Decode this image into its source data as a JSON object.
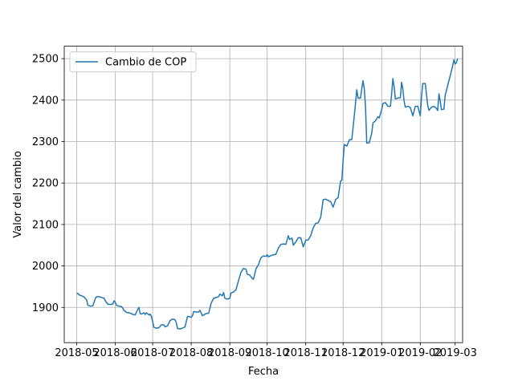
{
  "chart_data": {
    "type": "line",
    "title": "",
    "xlabel": "Fecha",
    "ylabel": "Valor del cambio",
    "grid": true,
    "legend_position": "top-left",
    "xlim": [
      "2018-04-21",
      "2019-03-07"
    ],
    "ylim": [
      1815,
      2530
    ],
    "x_ticks": [
      "2018-05-01",
      "2018-06-01",
      "2018-07-01",
      "2018-08-01",
      "2018-09-01",
      "2018-10-01",
      "2018-11-01",
      "2018-12-01",
      "2019-01-01",
      "2019-02-01",
      "2019-03-01"
    ],
    "x_tick_labels": [
      "2018-05",
      "2018-06",
      "2018-07",
      "2018-08",
      "2018-09",
      "2018-10",
      "2018-11",
      "2018-12",
      "2019-01",
      "2019-02",
      "2019-03"
    ],
    "y_ticks": [
      1900,
      2000,
      2100,
      2200,
      2300,
      2400,
      2500
    ],
    "y_tick_labels": [
      "1900",
      "2000",
      "2100",
      "2200",
      "2300",
      "2400",
      "2500"
    ],
    "series": [
      {
        "name": "Cambio de COP",
        "color": "#1f77b4",
        "points": [
          [
            "2018-05-01",
            1933
          ],
          [
            "2018-05-02",
            1934
          ],
          [
            "2018-05-03",
            1930
          ],
          [
            "2018-05-05",
            1928
          ],
          [
            "2018-05-07",
            1925
          ],
          [
            "2018-05-09",
            1918
          ],
          [
            "2018-05-10",
            1905
          ],
          [
            "2018-05-12",
            1903
          ],
          [
            "2018-05-14",
            1904
          ],
          [
            "2018-05-16",
            1922
          ],
          [
            "2018-05-17",
            1926
          ],
          [
            "2018-05-19",
            1926
          ],
          [
            "2018-05-21",
            1924
          ],
          [
            "2018-05-23",
            1922
          ],
          [
            "2018-05-24",
            1916
          ],
          [
            "2018-05-26",
            1908
          ],
          [
            "2018-05-28",
            1907
          ],
          [
            "2018-05-30",
            1908
          ],
          [
            "2018-05-31",
            1916
          ],
          [
            "2018-06-01",
            1912
          ],
          [
            "2018-06-02",
            1905
          ],
          [
            "2018-06-04",
            1903
          ],
          [
            "2018-06-06",
            1902
          ],
          [
            "2018-06-07",
            1898
          ],
          [
            "2018-06-08",
            1893
          ],
          [
            "2018-06-10",
            1888
          ],
          [
            "2018-06-12",
            1887
          ],
          [
            "2018-06-14",
            1885
          ],
          [
            "2018-06-15",
            1883
          ],
          [
            "2018-06-17",
            1882
          ],
          [
            "2018-06-19",
            1895
          ],
          [
            "2018-06-20",
            1900
          ],
          [
            "2018-06-21",
            1885
          ],
          [
            "2018-06-22",
            1884
          ],
          [
            "2018-06-24",
            1887
          ],
          [
            "2018-06-25",
            1883
          ],
          [
            "2018-06-26",
            1887
          ],
          [
            "2018-06-28",
            1882
          ],
          [
            "2018-06-29",
            1884
          ],
          [
            "2018-06-30",
            1878
          ],
          [
            "2018-07-01",
            1866
          ],
          [
            "2018-07-02",
            1852
          ],
          [
            "2018-07-04",
            1850
          ],
          [
            "2018-07-06",
            1851
          ],
          [
            "2018-07-08",
            1858
          ],
          [
            "2018-07-10",
            1858
          ],
          [
            "2018-07-11",
            1853
          ],
          [
            "2018-07-13",
            1856
          ],
          [
            "2018-07-15",
            1868
          ],
          [
            "2018-07-17",
            1872
          ],
          [
            "2018-07-19",
            1870
          ],
          [
            "2018-07-20",
            1863
          ],
          [
            "2018-07-21",
            1849
          ],
          [
            "2018-07-23",
            1848
          ],
          [
            "2018-07-25",
            1850
          ],
          [
            "2018-07-27",
            1853
          ],
          [
            "2018-07-29",
            1878
          ],
          [
            "2018-07-30",
            1878
          ],
          [
            "2018-08-01",
            1876
          ],
          [
            "2018-08-02",
            1880
          ],
          [
            "2018-08-03",
            1890
          ],
          [
            "2018-08-05",
            1889
          ],
          [
            "2018-08-07",
            1889
          ],
          [
            "2018-08-08",
            1893
          ],
          [
            "2018-08-10",
            1880
          ],
          [
            "2018-08-11",
            1882
          ],
          [
            "2018-08-13",
            1885
          ],
          [
            "2018-08-15",
            1886
          ],
          [
            "2018-08-17",
            1910
          ],
          [
            "2018-08-19",
            1922
          ],
          [
            "2018-08-21",
            1924
          ],
          [
            "2018-08-23",
            1926
          ],
          [
            "2018-08-24",
            1932
          ],
          [
            "2018-08-26",
            1928
          ],
          [
            "2018-08-27",
            1936
          ],
          [
            "2018-08-28",
            1922
          ],
          [
            "2018-08-30",
            1920
          ],
          [
            "2018-09-01",
            1922
          ],
          [
            "2018-09-02",
            1935
          ],
          [
            "2018-09-04",
            1937
          ],
          [
            "2018-09-06",
            1943
          ],
          [
            "2018-09-08",
            1965
          ],
          [
            "2018-09-10",
            1985
          ],
          [
            "2018-09-12",
            1994
          ],
          [
            "2018-09-14",
            1992
          ],
          [
            "2018-09-15",
            1980
          ],
          [
            "2018-09-17",
            1978
          ],
          [
            "2018-09-19",
            1970
          ],
          [
            "2018-09-20",
            1968
          ],
          [
            "2018-09-22",
            1993
          ],
          [
            "2018-09-24",
            2003
          ],
          [
            "2018-09-26",
            2020
          ],
          [
            "2018-09-28",
            2024
          ],
          [
            "2018-09-30",
            2023
          ],
          [
            "2018-10-01",
            2027
          ],
          [
            "2018-10-02",
            2022
          ],
          [
            "2018-10-04",
            2025
          ],
          [
            "2018-10-06",
            2027
          ],
          [
            "2018-10-08",
            2028
          ],
          [
            "2018-10-10",
            2043
          ],
          [
            "2018-10-12",
            2052
          ],
          [
            "2018-10-14",
            2053
          ],
          [
            "2018-10-16",
            2052
          ],
          [
            "2018-10-18",
            2073
          ],
          [
            "2018-10-19",
            2064
          ],
          [
            "2018-10-21",
            2067
          ],
          [
            "2018-10-22",
            2050
          ],
          [
            "2018-10-24",
            2058
          ],
          [
            "2018-10-26",
            2068
          ],
          [
            "2018-10-28",
            2068
          ],
          [
            "2018-10-30",
            2046
          ],
          [
            "2018-11-01",
            2062
          ],
          [
            "2018-11-03",
            2063
          ],
          [
            "2018-11-05",
            2073
          ],
          [
            "2018-11-07",
            2092
          ],
          [
            "2018-11-09",
            2103
          ],
          [
            "2018-11-11",
            2104
          ],
          [
            "2018-11-13",
            2117
          ],
          [
            "2018-11-15",
            2160
          ],
          [
            "2018-11-17",
            2161
          ],
          [
            "2018-11-19",
            2158
          ],
          [
            "2018-11-21",
            2155
          ],
          [
            "2018-11-23",
            2142
          ],
          [
            "2018-11-25",
            2160
          ],
          [
            "2018-11-27",
            2165
          ],
          [
            "2018-11-29",
            2205
          ],
          [
            "2018-11-30",
            2207
          ],
          [
            "2018-12-01",
            2254
          ],
          [
            "2018-12-02",
            2293
          ],
          [
            "2018-12-04",
            2289
          ],
          [
            "2018-12-06",
            2304
          ],
          [
            "2018-12-08",
            2305
          ],
          [
            "2018-12-10",
            2362
          ],
          [
            "2018-12-12",
            2425
          ],
          [
            "2018-12-13",
            2405
          ],
          [
            "2018-12-15",
            2405
          ],
          [
            "2018-12-16",
            2428
          ],
          [
            "2018-12-17",
            2447
          ],
          [
            "2018-12-18",
            2428
          ],
          [
            "2018-12-19",
            2385
          ],
          [
            "2018-12-20",
            2296
          ],
          [
            "2018-12-22",
            2297
          ],
          [
            "2018-12-24",
            2320
          ],
          [
            "2018-12-25",
            2345
          ],
          [
            "2018-12-27",
            2350
          ],
          [
            "2018-12-29",
            2360
          ],
          [
            "2018-12-30",
            2357
          ],
          [
            "2019-01-01",
            2377
          ],
          [
            "2019-01-02",
            2392
          ],
          [
            "2019-01-04",
            2394
          ],
          [
            "2019-01-06",
            2385
          ],
          [
            "2019-01-08",
            2385
          ],
          [
            "2019-01-09",
            2415
          ],
          [
            "2019-01-10",
            2452
          ],
          [
            "2019-01-11",
            2432
          ],
          [
            "2019-01-12",
            2403
          ],
          [
            "2019-01-14",
            2405
          ],
          [
            "2019-01-16",
            2406
          ],
          [
            "2019-01-17",
            2443
          ],
          [
            "2019-01-18",
            2427
          ],
          [
            "2019-01-19",
            2397
          ],
          [
            "2019-01-20",
            2383
          ],
          [
            "2019-01-22",
            2385
          ],
          [
            "2019-01-24",
            2382
          ],
          [
            "2019-01-26",
            2362
          ],
          [
            "2019-01-28",
            2385
          ],
          [
            "2019-01-30",
            2385
          ],
          [
            "2019-02-01",
            2362
          ],
          [
            "2019-02-02",
            2408
          ],
          [
            "2019-02-03",
            2440
          ],
          [
            "2019-02-05",
            2440
          ],
          [
            "2019-02-07",
            2387
          ],
          [
            "2019-02-08",
            2375
          ],
          [
            "2019-02-10",
            2383
          ],
          [
            "2019-02-12",
            2385
          ],
          [
            "2019-02-14",
            2380
          ],
          [
            "2019-02-15",
            2375
          ],
          [
            "2019-02-16",
            2415
          ],
          [
            "2019-02-17",
            2398
          ],
          [
            "2019-02-18",
            2377
          ],
          [
            "2019-02-20",
            2378
          ],
          [
            "2019-02-21",
            2411
          ],
          [
            "2019-02-23",
            2435
          ],
          [
            "2019-02-25",
            2458
          ],
          [
            "2019-02-27",
            2482
          ],
          [
            "2019-02-28",
            2497
          ],
          [
            "2019-03-01",
            2487
          ],
          [
            "2019-03-02",
            2490
          ],
          [
            "2019-03-03",
            2500
          ]
        ]
      }
    ]
  }
}
